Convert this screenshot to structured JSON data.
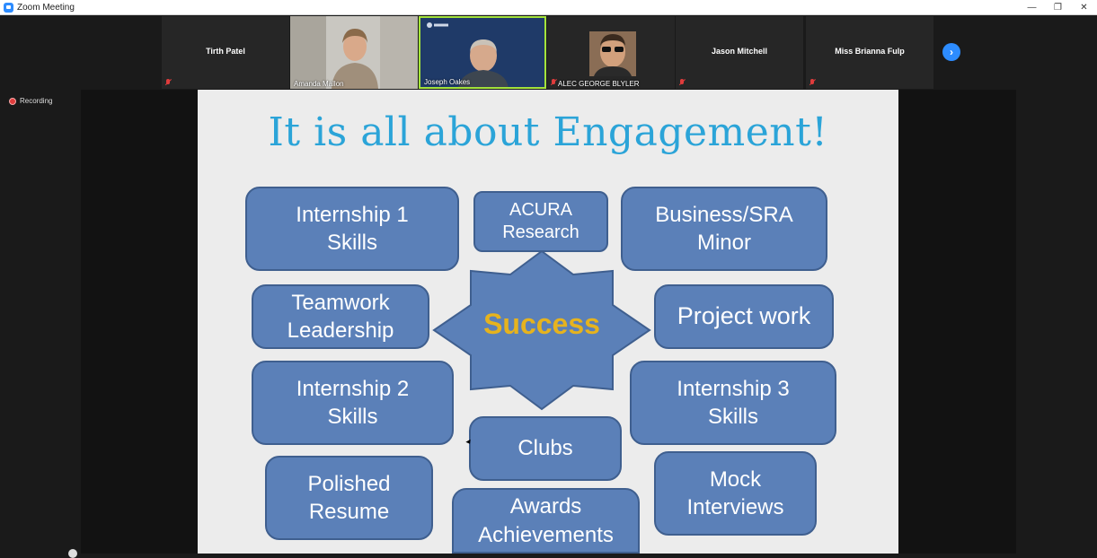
{
  "window": {
    "title": "Zoom Meeting",
    "minimize": "—",
    "restore": "❐",
    "close": "✕"
  },
  "participants": [
    {
      "name": "Tirth Patel",
      "video": false,
      "muted": true
    },
    {
      "name": "Amanda Mallon",
      "video": true,
      "muted": false
    },
    {
      "name": "Joseph Oakes",
      "video": true,
      "muted": false,
      "active_speaker": true
    },
    {
      "name": "ALEC GEORGE BLYLER",
      "video": true,
      "muted": true
    },
    {
      "name": "Jason Mitchell",
      "video": false,
      "muted": true
    },
    {
      "name": "Miss Brianna Fulp",
      "video": false,
      "muted": true
    }
  ],
  "gallery_next_icon": "chevron-right-icon",
  "recording": {
    "label": "Recording"
  },
  "slide": {
    "title": "It is all about Engagement!",
    "center": "Success",
    "boxes": [
      "Internship 1\nSkills",
      "ACURA\nResearch",
      "Business/SRA\nMinor",
      "Teamwork\nLeadership",
      "Project work",
      "Internship 2\nSkills",
      "Internship 3\nSkills",
      "Clubs",
      "Polished\nResume",
      "Awards\nAchievements",
      "Mock\nInterviews"
    ]
  },
  "colors": {
    "accent": "#2d8cff",
    "title": "#2ba4d8",
    "box": "#5b80b8",
    "success": "#e6b31e",
    "speaker_border": "#a4e33b"
  }
}
